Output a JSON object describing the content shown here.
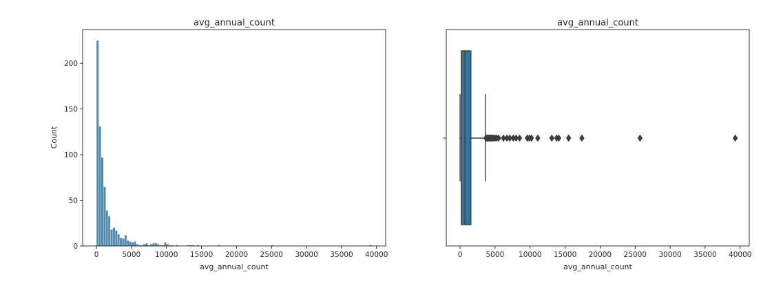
{
  "chart_data": [
    {
      "type": "bar",
      "variant": "histogram",
      "title": "avg_annual_count",
      "xlabel": "avg_annual_count",
      "ylabel": "Count",
      "xlim": [
        -1970,
        41300
      ],
      "ylim": [
        0,
        237
      ],
      "x_ticks": [
        0,
        5000,
        10000,
        15000,
        20000,
        25000,
        30000,
        35000,
        40000
      ],
      "y_ticks": [
        0,
        50,
        100,
        150,
        200
      ],
      "grid": false,
      "bar_color": "#3274a1",
      "bin_start": 0,
      "bin_width": 333,
      "values": [
        225,
        131,
        97,
        65,
        39,
        33,
        18,
        20,
        17,
        13,
        9,
        8,
        12,
        6,
        5,
        4,
        5,
        2,
        1,
        1,
        2,
        3,
        1,
        2,
        3,
        3,
        2,
        1,
        1,
        4,
        2,
        1,
        1,
        0,
        1,
        0,
        0,
        0,
        0,
        1,
        1,
        1,
        0,
        1,
        0,
        0,
        0,
        0,
        0,
        0,
        0,
        0,
        1,
        0,
        0,
        0,
        0,
        0,
        0,
        0,
        0,
        0,
        0,
        0,
        0,
        0,
        0,
        0,
        0,
        0,
        0,
        0,
        0,
        0,
        0,
        1,
        0,
        0,
        0,
        0,
        0,
        0,
        0,
        0,
        0,
        0,
        0,
        0,
        0,
        0,
        0,
        0,
        0,
        0,
        0,
        0,
        0,
        0,
        0,
        0,
        0,
        0,
        0,
        0,
        0,
        0,
        0,
        0,
        0,
        0,
        0,
        0,
        0,
        0,
        0,
        0,
        0,
        1
      ]
    },
    {
      "type": "box",
      "title": "avg_annual_count",
      "xlabel": "avg_annual_count",
      "xlim": [
        -1970,
        41300
      ],
      "x_ticks": [
        0,
        5000,
        10000,
        15000,
        20000,
        25000,
        30000,
        35000,
        40000
      ],
      "grid": false,
      "box_color": "#3274a1",
      "whisker_low": 0,
      "q1": 180,
      "median": 700,
      "q3": 1550,
      "whisker_high": 3600,
      "outliers": [
        3700,
        3800,
        3900,
        4000,
        4100,
        4200,
        4300,
        4400,
        4500,
        4650,
        4800,
        5000,
        5200,
        5500,
        6200,
        6700,
        7100,
        7600,
        8000,
        8500,
        9600,
        9900,
        10200,
        11100,
        13100,
        13800,
        14100,
        15500,
        17400,
        25700,
        39300
      ]
    }
  ]
}
